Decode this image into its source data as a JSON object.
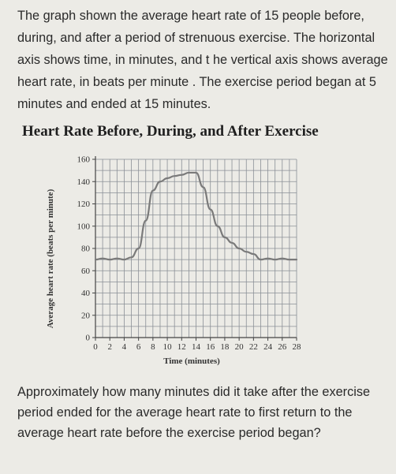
{
  "intro_text": "The graph shown the average heart rate of 15 people before, during, and after a period of strenuous exercise. The horizontal axis shows time, in minutes, and t he vertical axis shows average heart rate, in beats per minute . The exercise period began at 5 minutes and ended at 15 minutes.",
  "question_text": "Approximately how many minutes did it take after the exercise period ended for the average heart rate to first return to the average heart rate before the exercise period began?",
  "chart_data": {
    "type": "line",
    "title": "Heart Rate Before, During, and After Exercise",
    "xlabel": "Time (minutes)",
    "ylabel": "Average heart rate (beats per minute)",
    "xlim": [
      0,
      28
    ],
    "ylim": [
      0,
      160
    ],
    "xticks": [
      0,
      2,
      4,
      6,
      8,
      10,
      12,
      14,
      16,
      18,
      20,
      22,
      24,
      26,
      28
    ],
    "yticks": [
      0,
      20,
      40,
      60,
      80,
      100,
      120,
      140,
      160
    ],
    "grid": true,
    "line_color": "#7a7a7a",
    "series": [
      {
        "x": [
          0,
          1,
          2,
          3,
          4,
          5,
          6,
          7,
          8,
          9,
          10,
          11,
          12,
          13,
          14,
          15,
          16,
          17,
          18,
          19,
          20,
          21,
          22,
          23,
          24,
          25,
          26,
          27,
          28
        ],
        "values": [
          70,
          71,
          70,
          71,
          70,
          72,
          80,
          105,
          132,
          140,
          143,
          145,
          146,
          148,
          148,
          135,
          115,
          100,
          90,
          85,
          80,
          77,
          75,
          70,
          71,
          70,
          71,
          70,
          70
        ]
      }
    ]
  }
}
